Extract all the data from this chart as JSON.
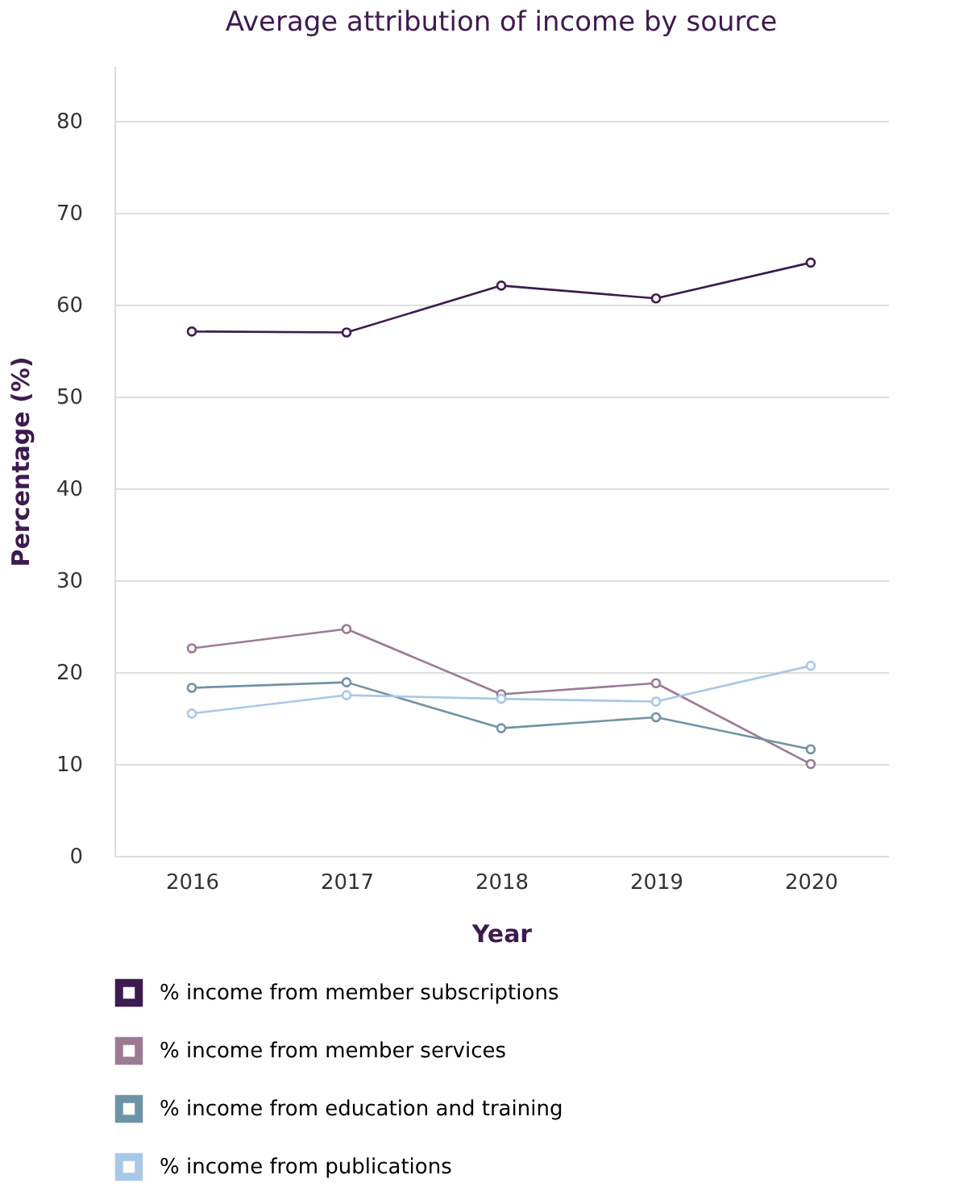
{
  "chart_data": {
    "type": "line",
    "title": "Average attribution of income by source",
    "xlabel": "Year",
    "ylabel": "Percentage (%)",
    "categories": [
      "2016",
      "2017",
      "2018",
      "2019",
      "2020"
    ],
    "series": [
      {
        "name": "% income from member subscriptions",
        "color": "#3d1a4f",
        "values": [
          57.1,
          57.0,
          62.1,
          60.7,
          64.6
        ]
      },
      {
        "name": "% income from member services",
        "color": "#9c7a94",
        "values": [
          22.6,
          24.7,
          17.6,
          18.8,
          10.0
        ]
      },
      {
        "name": "% income from education and training",
        "color": "#6f93a6",
        "values": [
          18.3,
          18.9,
          13.9,
          15.1,
          11.6
        ]
      },
      {
        "name": "% income from publications",
        "color": "#a8c8e8",
        "values": [
          15.5,
          17.5,
          17.1,
          16.8,
          20.7
        ]
      }
    ],
    "ylim": [
      0,
      86
    ],
    "yticks": [
      0,
      10,
      20,
      30,
      40,
      50,
      60,
      70,
      80
    ],
    "grid": "y",
    "legend": "bottom",
    "marker": "circle",
    "line_style": "solid"
  }
}
